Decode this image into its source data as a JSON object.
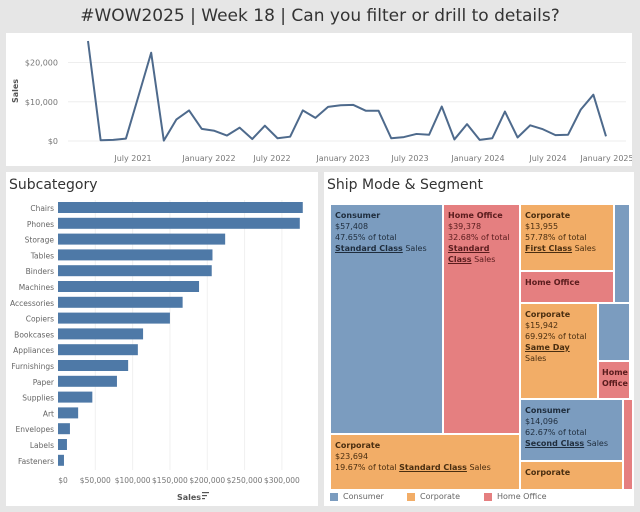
{
  "title": "#WOW2025 | Week 18 | Can you filter or drill to details?",
  "line_chart": {
    "type": "line",
    "ylabel": "Sales",
    "y_ticks": [
      "$0",
      "$10,000",
      "$20,000"
    ],
    "y_tick_values": [
      0,
      10000,
      20000
    ],
    "x_ticks": [
      "July 2021",
      "January 2022",
      "July 2022",
      "January 2023",
      "July 2023",
      "January 2024",
      "July 2024",
      "January 2025"
    ],
    "ylim": [
      0,
      26000
    ],
    "values": [
      25500,
      200,
      300,
      600,
      11500,
      22500,
      100,
      5500,
      7800,
      3100,
      2600,
      1400,
      3400,
      500,
      3900,
      700,
      1100,
      7800,
      5900,
      8700,
      9100,
      9200,
      7700,
      7700,
      700,
      1000,
      1800,
      1600,
      8800,
      400,
      4300,
      300,
      700,
      7500,
      900,
      4000,
      3000,
      1500,
      1600,
      8000,
      11800,
      1200
    ]
  },
  "subcategory": {
    "title": "Subcategory",
    "xlabel": "Sales",
    "sort_icon": "sort-descending-icon",
    "x_ticks": [
      "$0",
      "$50,000",
      "$100,000",
      "$150,000",
      "$200,000",
      "$250,000",
      "$300,000"
    ],
    "xlim": [
      0,
      335000
    ],
    "categories": [
      "Chairs",
      "Phones",
      "Storage",
      "Tables",
      "Binders",
      "Machines",
      "Accessories",
      "Copiers",
      "Bookcases",
      "Appliances",
      "Furnishings",
      "Paper",
      "Supplies",
      "Art",
      "Envelopes",
      "Labels",
      "Fasteners"
    ],
    "values": [
      328000,
      324000,
      224000,
      207000,
      206000,
      189000,
      167000,
      150000,
      114000,
      107000,
      94000,
      79000,
      46000,
      27000,
      16000,
      12000,
      8000
    ]
  },
  "treemap": {
    "title": "Ship Mode & Segment",
    "cells": [
      {
        "segment": "Consumer",
        "value": "$57,408",
        "pct": "47.65% of total ",
        "mode": "Standard Class",
        "suffix": " Sales"
      },
      {
        "segment": "Home Office",
        "value": "$39,378",
        "pct": "32.68% of total ",
        "mode": "Standard Class",
        "suffix": " Sales"
      },
      {
        "segment": "Corporate",
        "value": "$23,694",
        "pct": "19.67% of total ",
        "mode": "Standard Class",
        "suffix": " Sales"
      },
      {
        "segment": "Corporate",
        "value": "$13,955",
        "pct": "57.78% of total ",
        "mode": "First Class",
        "suffix": " Sales"
      },
      {
        "segment": "Home Office"
      },
      {
        "segment": "Corporate",
        "value": "$15,942",
        "pct": "69.92% of total ",
        "mode": "Same Day",
        "suffix": " Sales"
      },
      {
        "segment": "Home Office"
      },
      {
        "segment": "Consumer",
        "value": "$14,096",
        "pct": "62.67% of total ",
        "mode": "Second Class",
        "suffix": " Sales"
      },
      {
        "segment": "Corporate"
      }
    ],
    "legend": [
      {
        "label": "Consumer",
        "color": "#7b9cbf"
      },
      {
        "label": "Corporate",
        "color": "#f2ad67"
      },
      {
        "label": "Home Office",
        "color": "#e57f80"
      }
    ]
  },
  "colors": {
    "line": "#4e6a8c",
    "bar": "#4e79a7",
    "consumer": "#7b9cbf",
    "corporate": "#f2ad67",
    "home_office": "#e57f80"
  }
}
